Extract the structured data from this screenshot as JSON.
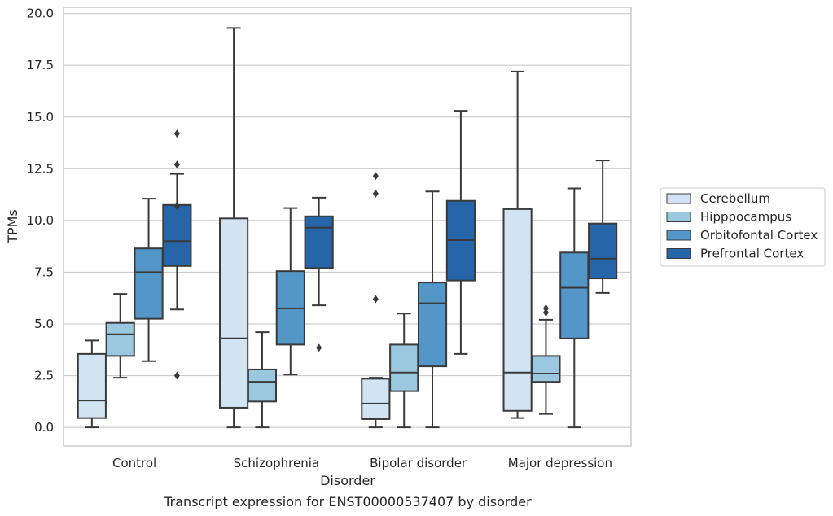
{
  "chart_data": {
    "type": "box",
    "caption": "Transcript expression for ENST00000537407 by disorder",
    "xlabel": "Disorder",
    "ylabel": "TPMs",
    "ylim": [
      -0.9,
      20.3
    ],
    "yticks": [
      "0.0",
      "2.5",
      "5.0",
      "7.5",
      "10.0",
      "12.5",
      "15.0",
      "17.5",
      "20.0"
    ],
    "ytick_values": [
      0,
      2.5,
      5,
      7.5,
      10,
      12.5,
      15,
      17.5,
      20
    ],
    "grid": "horizontal",
    "legend_position": "right",
    "categories": [
      "Control",
      "Schizophrenia",
      "Bipolar disorder",
      "Major depression"
    ],
    "series": [
      {
        "name": "Cerebellum",
        "color": "#d2e3f3",
        "boxes": [
          {
            "whislo": 0.0,
            "q1": 0.45,
            "med": 1.3,
            "q3": 3.55,
            "whishi": 4.2,
            "fliers": []
          },
          {
            "whislo": 0.0,
            "q1": 0.95,
            "med": 4.3,
            "q3": 10.1,
            "whishi": 19.3,
            "fliers": []
          },
          {
            "whislo": 0.0,
            "q1": 0.4,
            "med": 1.15,
            "q3": 2.35,
            "whishi": 2.4,
            "fliers": [
              6.2,
              11.3,
              12.15
            ]
          },
          {
            "whislo": 0.45,
            "q1": 0.8,
            "med": 2.65,
            "q3": 10.55,
            "whishi": 17.2,
            "fliers": []
          }
        ]
      },
      {
        "name": "Hipppocampus",
        "color": "#9ac8e0",
        "boxes": [
          {
            "whislo": 2.4,
            "q1": 3.45,
            "med": 4.5,
            "q3": 5.05,
            "whishi": 6.45,
            "fliers": []
          },
          {
            "whislo": 0.0,
            "q1": 1.25,
            "med": 2.2,
            "q3": 2.8,
            "whishi": 4.6,
            "fliers": []
          },
          {
            "whislo": 0.0,
            "q1": 1.75,
            "med": 2.65,
            "q3": 4.0,
            "whishi": 5.5,
            "fliers": []
          },
          {
            "whislo": 0.65,
            "q1": 2.2,
            "med": 2.6,
            "q3": 3.45,
            "whishi": 5.2,
            "fliers": [
              5.55,
              5.75
            ]
          }
        ]
      },
      {
        "name": "Orbitofontal Cortex",
        "color": "#5297c7",
        "boxes": [
          {
            "whislo": 3.2,
            "q1": 5.25,
            "med": 7.5,
            "q3": 8.65,
            "whishi": 11.05,
            "fliers": []
          },
          {
            "whislo": 2.55,
            "q1": 4.0,
            "med": 5.75,
            "q3": 7.55,
            "whishi": 10.6,
            "fliers": []
          },
          {
            "whislo": 0.0,
            "q1": 2.95,
            "med": 6.0,
            "q3": 7.0,
            "whishi": 11.4,
            "fliers": []
          },
          {
            "whislo": 0.0,
            "q1": 4.3,
            "med": 6.75,
            "q3": 8.45,
            "whishi": 11.55,
            "fliers": []
          }
        ]
      },
      {
        "name": "Prefrontal Cortex",
        "color": "#2565a8",
        "boxes": [
          {
            "whislo": 5.7,
            "q1": 7.8,
            "med": 9.0,
            "q3": 10.75,
            "whishi": 12.25,
            "fliers": [
              2.5,
              10.7,
              12.7,
              14.2
            ]
          },
          {
            "whislo": 5.9,
            "q1": 7.7,
            "med": 9.65,
            "q3": 10.2,
            "whishi": 11.1,
            "fliers": [
              3.85
            ]
          },
          {
            "whislo": 3.55,
            "q1": 7.1,
            "med": 9.05,
            "q3": 10.95,
            "whishi": 15.3,
            "fliers": []
          },
          {
            "whislo": 6.5,
            "q1": 7.2,
            "med": 8.15,
            "q3": 9.85,
            "whishi": 12.9,
            "fliers": []
          }
        ]
      }
    ]
  }
}
